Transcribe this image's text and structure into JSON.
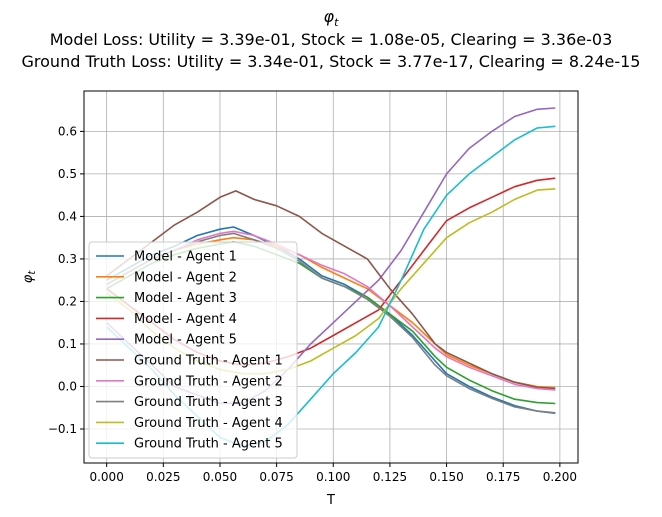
{
  "chart_data": {
    "type": "line",
    "title": "φ_t",
    "subtitle": [
      "Model Loss: Utility = 3.39e-01, Stock = 1.08e-05, Clearing = 3.36e-03",
      "Ground Truth Loss: Utility = 3.34e-01, Stock = 3.77e-17, Clearing = 8.24e-15"
    ],
    "xlabel": "T",
    "ylabel": "φ_t",
    "xlim": [
      -0.01,
      0.208
    ],
    "ylim": [
      -0.18,
      0.695
    ],
    "xticks": [
      0.0,
      0.025,
      0.05,
      0.075,
      0.1,
      0.125,
      0.15,
      0.175,
      0.2
    ],
    "xtick_labels": [
      "0.000",
      "0.025",
      "0.050",
      "0.075",
      "0.100",
      "0.125",
      "0.150",
      "0.175",
      "0.200"
    ],
    "yticks": [
      -0.1,
      0.0,
      0.1,
      0.2,
      0.3,
      0.4,
      0.5,
      0.6
    ],
    "ytick_labels": [
      "−0.1",
      "0.0",
      "0.1",
      "0.2",
      "0.3",
      "0.4",
      "0.5",
      "0.6"
    ],
    "grid": true,
    "legend_position": "lower-left",
    "series": [
      {
        "name": "Model - Agent 1",
        "color": "#1f77b4",
        "x": [
          0,
          0.01,
          0.02,
          0.03,
          0.04,
          0.05,
          0.056,
          0.065,
          0.075,
          0.085,
          0.095,
          0.105,
          0.115,
          0.125,
          0.135,
          0.145,
          0.15,
          0.16,
          0.17,
          0.18,
          0.19,
          0.198
        ],
        "y": [
          0.25,
          0.28,
          0.31,
          0.33,
          0.355,
          0.37,
          0.375,
          0.355,
          0.33,
          0.3,
          0.26,
          0.24,
          0.21,
          0.17,
          0.12,
          0.06,
          0.03,
          0.0,
          -0.025,
          -0.045,
          -0.058,
          -0.063
        ]
      },
      {
        "name": "Model - Agent 2",
        "color": "#ff7f0e",
        "x": [
          0,
          0.01,
          0.02,
          0.03,
          0.04,
          0.05,
          0.056,
          0.065,
          0.075,
          0.085,
          0.095,
          0.105,
          0.115,
          0.125,
          0.135,
          0.145,
          0.15,
          0.16,
          0.17,
          0.18,
          0.19,
          0.198
        ],
        "y": [
          0.24,
          0.27,
          0.3,
          0.32,
          0.335,
          0.345,
          0.35,
          0.345,
          0.33,
          0.31,
          0.28,
          0.255,
          0.23,
          0.19,
          0.15,
          0.1,
          0.075,
          0.05,
          0.03,
          0.01,
          0.0,
          -0.003
        ]
      },
      {
        "name": "Model - Agent 3",
        "color": "#2ca02c",
        "x": [
          0,
          0.01,
          0.02,
          0.03,
          0.04,
          0.05,
          0.056,
          0.065,
          0.075,
          0.085,
          0.095,
          0.105,
          0.115,
          0.125,
          0.135,
          0.145,
          0.15,
          0.16,
          0.17,
          0.18,
          0.19,
          0.198
        ],
        "y": [
          0.23,
          0.26,
          0.29,
          0.31,
          0.325,
          0.335,
          0.34,
          0.33,
          0.31,
          0.29,
          0.255,
          0.235,
          0.21,
          0.17,
          0.13,
          0.07,
          0.045,
          0.015,
          -0.01,
          -0.03,
          -0.038,
          -0.04
        ]
      },
      {
        "name": "Model - Agent 4",
        "color": "#d62728",
        "x": [
          0,
          0.01,
          0.02,
          0.03,
          0.04,
          0.05,
          0.06,
          0.07,
          0.08,
          0.09,
          0.1,
          0.11,
          0.12,
          0.13,
          0.14,
          0.15,
          0.16,
          0.17,
          0.18,
          0.19,
          0.198
        ],
        "y": [
          0.23,
          0.19,
          0.15,
          0.11,
          0.08,
          0.06,
          0.05,
          0.055,
          0.07,
          0.09,
          0.12,
          0.15,
          0.18,
          0.25,
          0.32,
          0.39,
          0.42,
          0.445,
          0.47,
          0.485,
          0.49
        ]
      },
      {
        "name": "Model - Agent 5",
        "color": "#9467bd",
        "x": [
          0,
          0.01,
          0.02,
          0.03,
          0.04,
          0.05,
          0.06,
          0.07,
          0.08,
          0.09,
          0.1,
          0.11,
          0.12,
          0.13,
          0.14,
          0.15,
          0.16,
          0.17,
          0.18,
          0.19,
          0.198
        ],
        "y": [
          0.15,
          0.1,
          0.05,
          0.0,
          -0.02,
          -0.04,
          -0.04,
          -0.01,
          0.04,
          0.1,
          0.15,
          0.2,
          0.25,
          0.32,
          0.41,
          0.5,
          0.56,
          0.6,
          0.635,
          0.652,
          0.655
        ]
      },
      {
        "name": "Ground Truth - Agent 1",
        "color": "#8c564b",
        "x": [
          0,
          0.01,
          0.02,
          0.03,
          0.04,
          0.05,
          0.057,
          0.065,
          0.075,
          0.085,
          0.095,
          0.105,
          0.115,
          0.125,
          0.135,
          0.145,
          0.15,
          0.16,
          0.17,
          0.18,
          0.19,
          0.198
        ],
        "y": [
          0.26,
          0.3,
          0.34,
          0.38,
          0.41,
          0.445,
          0.46,
          0.44,
          0.425,
          0.4,
          0.36,
          0.33,
          0.3,
          0.23,
          0.17,
          0.1,
          0.08,
          0.055,
          0.03,
          0.01,
          -0.002,
          -0.005
        ]
      },
      {
        "name": "Ground Truth - Agent 2",
        "color": "#e377c2",
        "x": [
          0,
          0.01,
          0.02,
          0.03,
          0.04,
          0.05,
          0.056,
          0.065,
          0.075,
          0.085,
          0.095,
          0.105,
          0.115,
          0.125,
          0.135,
          0.145,
          0.15,
          0.16,
          0.17,
          0.18,
          0.19,
          0.198
        ],
        "y": [
          0.24,
          0.27,
          0.3,
          0.32,
          0.345,
          0.36,
          0.365,
          0.355,
          0.335,
          0.31,
          0.285,
          0.265,
          0.235,
          0.19,
          0.14,
          0.09,
          0.07,
          0.045,
          0.025,
          0.005,
          -0.005,
          -0.008
        ]
      },
      {
        "name": "Ground Truth - Agent 3",
        "color": "#7f7f7f",
        "x": [
          0,
          0.01,
          0.02,
          0.03,
          0.04,
          0.05,
          0.056,
          0.065,
          0.075,
          0.085,
          0.095,
          0.105,
          0.115,
          0.125,
          0.135,
          0.145,
          0.15,
          0.16,
          0.17,
          0.18,
          0.19,
          0.198
        ],
        "y": [
          0.24,
          0.27,
          0.3,
          0.32,
          0.34,
          0.355,
          0.36,
          0.345,
          0.325,
          0.295,
          0.255,
          0.235,
          0.205,
          0.165,
          0.115,
          0.05,
          0.025,
          -0.005,
          -0.028,
          -0.048,
          -0.058,
          -0.062
        ]
      },
      {
        "name": "Ground Truth - Agent 4",
        "color": "#bcbd22",
        "x": [
          0,
          0.01,
          0.02,
          0.03,
          0.04,
          0.05,
          0.06,
          0.07,
          0.08,
          0.09,
          0.1,
          0.11,
          0.12,
          0.13,
          0.14,
          0.15,
          0.16,
          0.17,
          0.18,
          0.19,
          0.198
        ],
        "y": [
          0.22,
          0.18,
          0.13,
          0.09,
          0.06,
          0.04,
          0.03,
          0.03,
          0.04,
          0.06,
          0.09,
          0.12,
          0.16,
          0.23,
          0.29,
          0.35,
          0.385,
          0.41,
          0.44,
          0.462,
          0.465
        ]
      },
      {
        "name": "Ground Truth - Agent 5",
        "color": "#17becf",
        "x": [
          0,
          0.01,
          0.02,
          0.03,
          0.04,
          0.05,
          0.06,
          0.07,
          0.08,
          0.09,
          0.1,
          0.11,
          0.12,
          0.13,
          0.14,
          0.15,
          0.16,
          0.17,
          0.18,
          0.19,
          0.198
        ],
        "y": [
          0.14,
          0.09,
          0.04,
          -0.02,
          -0.07,
          -0.12,
          -0.14,
          -0.13,
          -0.09,
          -0.03,
          0.03,
          0.08,
          0.14,
          0.25,
          0.37,
          0.45,
          0.5,
          0.54,
          0.58,
          0.608,
          0.612
        ]
      }
    ]
  }
}
